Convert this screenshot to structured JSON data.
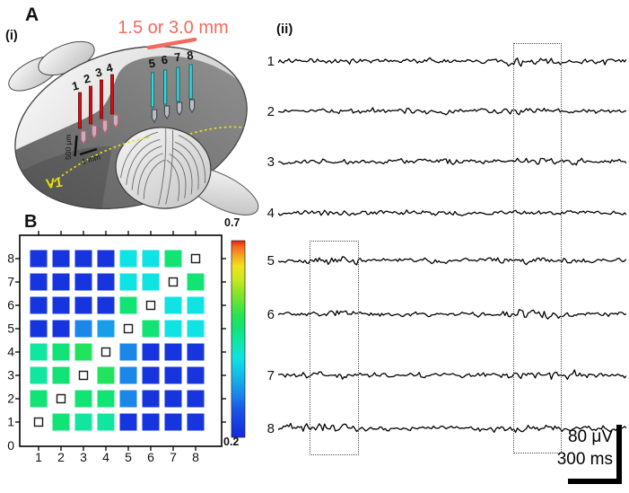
{
  "figure_labels": {
    "panel_a": "A",
    "sub_i": "(i)",
    "sub_ii": "(ii)",
    "panel_b": "B"
  },
  "brain": {
    "distance_annotation": "1.5 or 3.0 mm",
    "area_label": "V1",
    "depth_scale": "500 μm",
    "lateral_scale": "1 mm",
    "red_electrodes": [
      "1",
      "2",
      "3",
      "4"
    ],
    "cyan_electrodes": [
      "5",
      "6",
      "7",
      "8"
    ],
    "colors": {
      "red_electrode": "#d11013",
      "cyan_electrode": "#36d9d7",
      "annotation": "#f4695e",
      "v1_label": "#e8e00a"
    }
  },
  "traces": {
    "labels": [
      "1",
      "2",
      "3",
      "4",
      "5",
      "6",
      "7",
      "8"
    ],
    "amplitude_scale": "80 μV",
    "time_scale": "300 ms"
  },
  "chart_data": {
    "type": "heatmap",
    "x_tick_labels": [
      "1",
      "2",
      "3",
      "4",
      "5",
      "6",
      "7",
      "8"
    ],
    "y_tick_labels": [
      "8",
      "7",
      "6",
      "5",
      "4",
      "3",
      "2",
      "1",
      "0"
    ],
    "colorbar": {
      "top_label": "0.7",
      "bottom_label": "0.2",
      "min": 0.2,
      "max": 0.7
    },
    "row_order": [
      "8",
      "7",
      "6",
      "5",
      "4",
      "3",
      "2",
      "1"
    ],
    "col_order": [
      "1",
      "2",
      "3",
      "4",
      "5",
      "6",
      "7",
      "8"
    ],
    "values": [
      [
        0.22,
        0.22,
        0.22,
        0.22,
        0.4,
        0.4,
        0.48,
        null
      ],
      [
        0.22,
        0.22,
        0.22,
        0.22,
        0.4,
        0.4,
        null,
        0.48
      ],
      [
        0.22,
        0.22,
        0.22,
        0.22,
        0.48,
        null,
        0.4,
        0.4
      ],
      [
        0.22,
        0.22,
        0.31,
        0.33,
        null,
        0.48,
        0.4,
        0.4
      ],
      [
        0.45,
        0.48,
        0.5,
        null,
        0.31,
        0.22,
        0.22,
        0.22
      ],
      [
        0.45,
        0.48,
        null,
        0.5,
        0.31,
        0.22,
        0.22,
        0.22
      ],
      [
        0.48,
        null,
        0.48,
        0.48,
        0.31,
        0.22,
        0.22,
        0.22
      ],
      [
        null,
        0.48,
        0.45,
        0.45,
        0.22,
        0.22,
        0.22,
        0.22
      ]
    ]
  }
}
